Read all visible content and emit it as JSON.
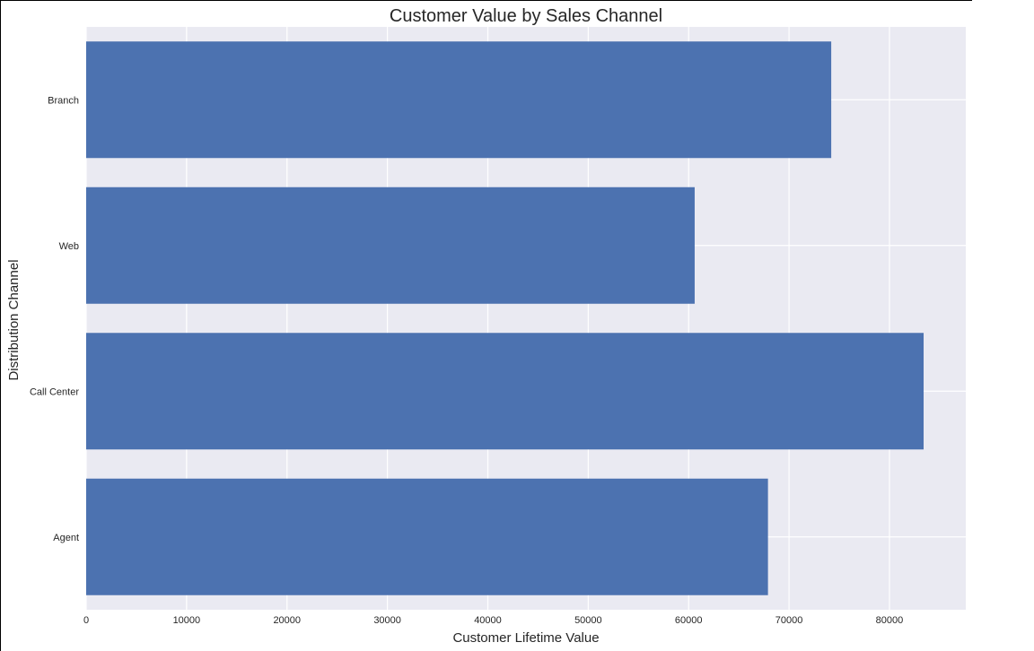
{
  "chart_data": {
    "type": "bar",
    "orientation": "horizontal",
    "title": "Customer Value by Sales Channel",
    "xlabel": "Customer Lifetime Value",
    "ylabel": "Distribution Channel",
    "categories": [
      "Branch",
      "Web",
      "Call Center",
      "Agent"
    ],
    "values": [
      74200,
      60600,
      83400,
      67900
    ],
    "xlim": [
      0,
      87600
    ],
    "xticks": [
      0,
      10000,
      20000,
      30000,
      40000,
      50000,
      60000,
      70000,
      80000
    ],
    "xtick_labels": [
      "0",
      "10000",
      "20000",
      "30000",
      "40000",
      "50000",
      "60000",
      "70000",
      "80000"
    ],
    "grid": true,
    "colors": {
      "bar": "#4c72b0",
      "plot_background": "#eaeaf2",
      "grid": "#ffffff",
      "text": "#262626"
    }
  }
}
